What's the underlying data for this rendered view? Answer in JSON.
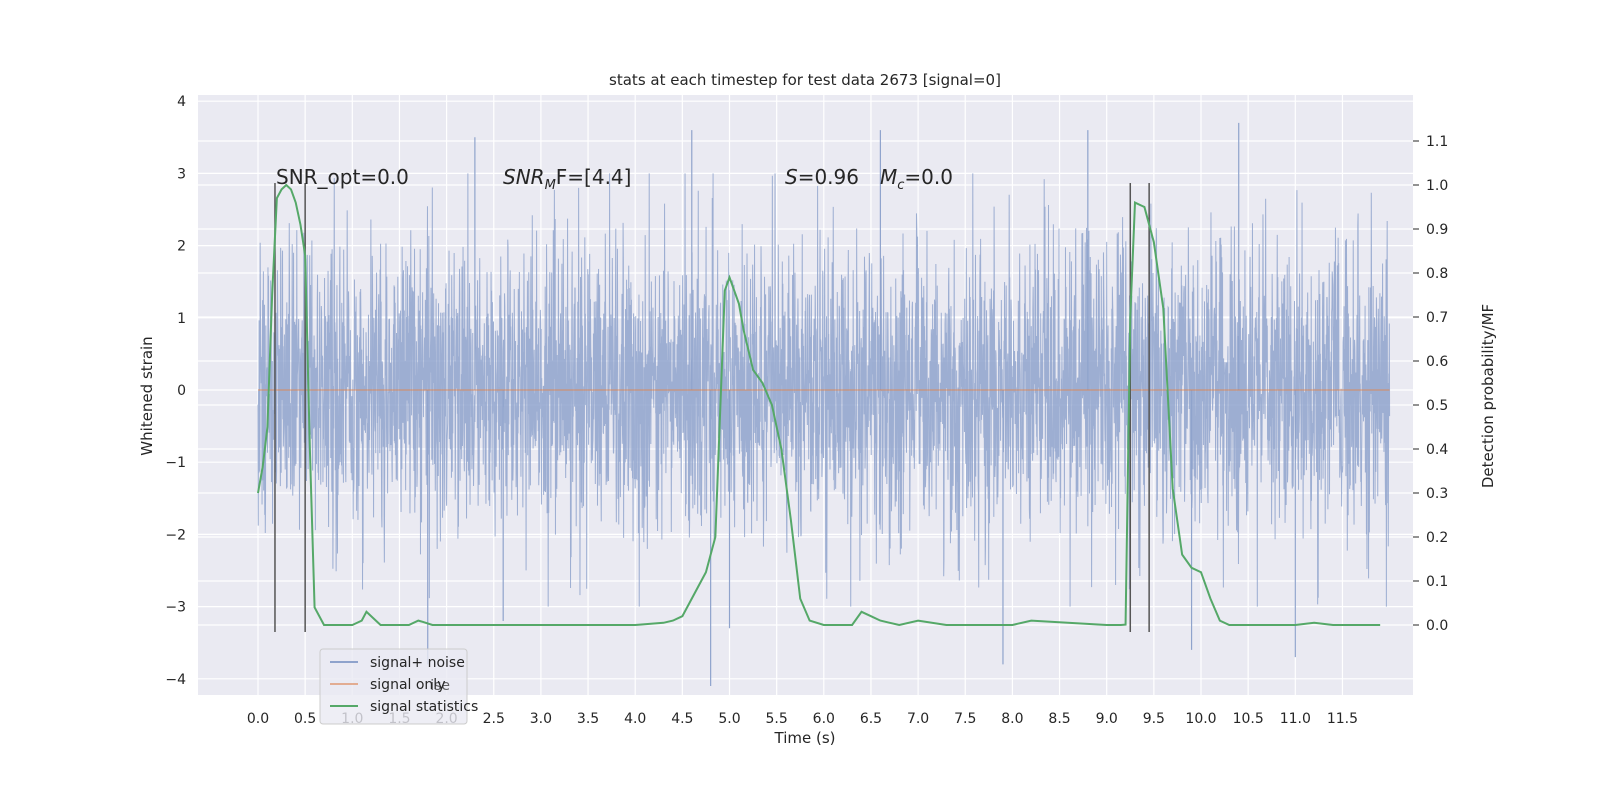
{
  "chart_data": {
    "type": "line",
    "title": "stats at each timestep for test data 2673 [signal=0]",
    "xlabel": "Time (s)",
    "ylabel_left": "Whitened strain",
    "ylabel_right": "Detection probability/MF",
    "xlim": [
      -0.5,
      12.4
    ],
    "ylim_left": [
      -4.5,
      4.1
    ],
    "ylim_right": [
      -0.2,
      1.2
    ],
    "x_ticks": [
      "0.0",
      "0.5",
      "1.0",
      "1.5",
      "2.0",
      "2.5",
      "3.0",
      "3.5",
      "4.0",
      "4.5",
      "5.0",
      "5.5",
      "6.0",
      "6.5",
      "7.0",
      "7.5",
      "8.0",
      "8.5",
      "9.0",
      "9.5",
      "10.0",
      "10.5",
      "11.0",
      "11.5"
    ],
    "y_ticks_left": [
      "4",
      "3",
      "2",
      "1",
      "0",
      "−1",
      "−2",
      "−3",
      "−4"
    ],
    "y_ticks_right": [
      "1.1",
      "1.0",
      "0.9",
      "0.8",
      "0.7",
      "0.6",
      "0.5",
      "0.4",
      "0.3",
      "0.2",
      "0.1",
      "0.0"
    ],
    "grid": true,
    "annotations": {
      "snr_opt": "SNR_opt=0.0",
      "snr_mf_sym": "SNR",
      "snr_mf_sub": "M",
      "snr_mf_rest": "F=[4.4]",
      "s_sym": "S",
      "s_rest": "=0.96",
      "mc_sym": "M",
      "mc_sub": "c",
      "mc_rest": "=0.0"
    },
    "series": [
      {
        "name": "signal+ noise",
        "color": "#8fa3cc",
        "axis": "left",
        "x_range": [
          0.0,
          12.0
        ],
        "typical_band": [
          -1.6,
          1.6
        ],
        "extremes": [
          {
            "x": 1.8,
            "y": -3.8
          },
          {
            "x": 2.3,
            "y": 3.5
          },
          {
            "x": 2.6,
            "y": -3.2
          },
          {
            "x": 4.6,
            "y": 3.6
          },
          {
            "x": 4.8,
            "y": -4.1
          },
          {
            "x": 5.0,
            "y": -3.3
          },
          {
            "x": 6.6,
            "y": 3.6
          },
          {
            "x": 7.9,
            "y": -3.8
          },
          {
            "x": 8.8,
            "y": 3.6
          },
          {
            "x": 9.9,
            "y": -3.6
          },
          {
            "x": 10.4,
            "y": 3.7
          },
          {
            "x": 11.0,
            "y": -3.7
          }
        ]
      },
      {
        "name": "signal only",
        "color": "#dd8452",
        "axis": "left",
        "x": [
          0.0,
          12.0
        ],
        "y": [
          0.0,
          0.0
        ]
      },
      {
        "name": "signal statistics",
        "color": "#55a868",
        "axis": "right",
        "x": [
          0.0,
          0.05,
          0.1,
          0.15,
          0.2,
          0.25,
          0.3,
          0.35,
          0.4,
          0.45,
          0.5,
          0.55,
          0.6,
          0.7,
          0.8,
          1.0,
          1.1,
          1.15,
          1.25,
          1.3,
          1.4,
          1.6,
          1.7,
          1.75,
          1.85,
          1.95,
          2.5,
          3.0,
          4.0,
          4.3,
          4.4,
          4.5,
          4.6,
          4.7,
          4.75,
          4.85,
          4.95,
          5.0,
          5.1,
          5.15,
          5.25,
          5.35,
          5.45,
          5.55,
          5.65,
          5.75,
          5.85,
          6.0,
          6.1,
          6.2,
          6.3,
          6.4,
          6.5,
          6.6,
          6.8,
          7.0,
          7.3,
          8.0,
          8.2,
          9.0,
          9.15,
          9.2,
          9.25,
          9.3,
          9.4,
          9.5,
          9.6,
          9.7,
          9.8,
          9.9,
          10.0,
          10.1,
          10.2,
          10.3,
          11.0,
          11.2,
          11.4,
          11.7,
          11.9
        ],
        "y": [
          0.3,
          0.36,
          0.45,
          0.75,
          0.97,
          0.99,
          1.0,
          0.99,
          0.96,
          0.91,
          0.84,
          0.4,
          0.04,
          0.0,
          0.0,
          0.0,
          0.01,
          0.03,
          0.01,
          0.0,
          0.0,
          0.0,
          0.01,
          0.007,
          0.0,
          0.0,
          0.0,
          0.0,
          0.0,
          0.005,
          0.01,
          0.02,
          0.06,
          0.1,
          0.12,
          0.2,
          0.76,
          0.79,
          0.73,
          0.67,
          0.58,
          0.55,
          0.5,
          0.4,
          0.24,
          0.06,
          0.01,
          0.0,
          0.0,
          0.0,
          0.0,
          0.03,
          0.02,
          0.01,
          0.0,
          0.01,
          0.0,
          0.0,
          0.01,
          0.0,
          0.0,
          0.001,
          0.7,
          0.96,
          0.95,
          0.87,
          0.72,
          0.31,
          0.16,
          0.13,
          0.12,
          0.06,
          0.01,
          0.0,
          0.0,
          0.005,
          0.0,
          0.0,
          0.0
        ]
      }
    ],
    "vertical_lines": [
      {
        "x": 0.18,
        "color": "#555555"
      },
      {
        "x": 0.5,
        "color": "#555555"
      },
      {
        "x": 9.25,
        "color": "#555555"
      },
      {
        "x": 9.45,
        "color": "#555555"
      }
    ],
    "legend": {
      "placement": "lower-left",
      "entries": [
        "signal+ noise",
        "signal only",
        "signal statistics"
      ],
      "ghost_text": "ise"
    }
  }
}
